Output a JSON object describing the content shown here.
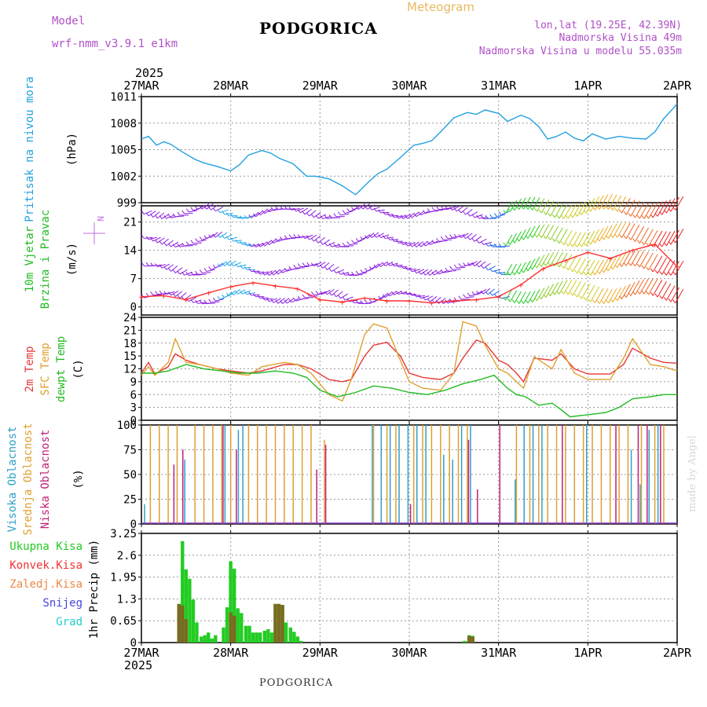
{
  "header": {
    "model_label": "Model",
    "model_name": "wrf-nmm_v3.9.1 e1km",
    "title": "PODGORICA",
    "meteogram_label": "Meteogram",
    "lonlat": "lon,lat (19.25E, 42.39N)",
    "elevation": "Nadmorska Visina 49m",
    "model_elevation": "Nadmorska Visina u modelu 55.035m",
    "year": "2025",
    "credit": "made by Angel"
  },
  "footer": {
    "station": "PODGORICA"
  },
  "colors": {
    "pressure": "#22a0e0",
    "temp2m": "#e83838",
    "sfc_temp": "#e0a030",
    "dewpoint": "#22bb22",
    "wind_barb": "#8a1ee0",
    "wind_speed": "#ff3030",
    "cloud_high": "#30a0c8",
    "cloud_mid": "#e0a030",
    "cloud_low": "#c0207a",
    "precip_total": "#22cc22",
    "precip_conv": "#ee3333",
    "precip_frozen": "#ee8844",
    "precip_snow": "#4444dd",
    "precip_hail": "#22cccc"
  },
  "x_axis": {
    "top_labels": [
      "27MAR",
      "28MAR",
      "29MAR",
      "30MAR",
      "31MAR",
      "1APR",
      "2APR"
    ],
    "bottom_labels": [
      "27MAR",
      "28MAR",
      "29MAR",
      "30MAR",
      "31MAR",
      "1APR",
      "2APR"
    ]
  },
  "chart_data": [
    {
      "type": "line",
      "panel": "pressure",
      "ylabel": "Pritisak na nivou mora",
      "unit": "(hPa)",
      "yticks": [
        999,
        1002,
        1005,
        1008,
        1011
      ],
      "ylim": [
        999,
        1011
      ],
      "series": [
        {
          "x": [
            0,
            0.08,
            0.17,
            0.25,
            0.33,
            0.45,
            0.6,
            0.7,
            0.85,
            1.0,
            1.1,
            1.2,
            1.35,
            1.45,
            1.55,
            1.7,
            1.85,
            1.95,
            2.1,
            2.25,
            2.4,
            2.55,
            2.65,
            2.75,
            2.9,
            3.05,
            3.15,
            3.25,
            3.35,
            3.5,
            3.65,
            3.75,
            3.85,
            4.0,
            4.1,
            4.25,
            4.35,
            4.45,
            4.55,
            4.65,
            4.75,
            4.85,
            4.95,
            5.05,
            5.2,
            5.35,
            5.5,
            5.65,
            5.75,
            5.85,
            5.95,
            6.0
          ],
          "values": [
            1006.2,
            1006.5,
            1005.5,
            1005.9,
            1005.6,
            1004.8,
            1003.9,
            1003.5,
            1003.1,
            1002.6,
            1003.3,
            1004.4,
            1004.9,
            1004.6,
            1004.0,
            1003.4,
            1002.0,
            1002.0,
            1001.7,
            1000.9,
            999.9,
            1001.4,
            1002.3,
            1002.8,
            1004.1,
            1005.5,
            1005.7,
            1006.0,
            1007.0,
            1008.6,
            1009.2,
            1009.0,
            1009.5,
            1009.1,
            1008.2,
            1008.9,
            1008.5,
            1007.6,
            1006.2,
            1006.5,
            1007.0,
            1006.3,
            1006.0,
            1006.8,
            1006.2,
            1006.5,
            1006.3,
            1006.2,
            1007.0,
            1008.5,
            1009.6,
            1010.2
          ]
        }
      ]
    },
    {
      "type": "line",
      "panel": "wind",
      "ylabel": "10m Vjetar Brzina i Pravac",
      "unit": "(m/s)",
      "compass": "N",
      "yticks": [
        0,
        7,
        14,
        21
      ],
      "ylim": [
        -2,
        25
      ],
      "series": [
        {
          "name": "wind speed",
          "x": [
            0,
            0.25,
            0.5,
            0.75,
            1.0,
            1.25,
            1.5,
            1.75,
            2.0,
            2.25,
            2.5,
            2.75,
            3.0,
            3.25,
            3.5,
            3.75,
            4.0,
            4.25,
            4.5,
            4.75,
            5.0,
            5.25,
            5.5,
            5.75,
            6.0
          ],
          "values": [
            2.5,
            2.8,
            1.8,
            3.5,
            5.0,
            6.0,
            5.2,
            4.5,
            1.8,
            1.2,
            2.2,
            1.5,
            1.5,
            1.0,
            1.5,
            1.8,
            2.5,
            5.5,
            9.5,
            11.5,
            13.5,
            12.0,
            14.0,
            15.5,
            10.0
          ]
        }
      ]
    },
    {
      "type": "line",
      "panel": "temperature",
      "ylabel": [
        "2m Temp",
        "SFC Temp",
        "dewpt Temp"
      ],
      "unit": "(C)",
      "yticks": [
        0,
        3,
        6,
        9,
        12,
        15,
        18,
        21,
        24
      ],
      "ylim": [
        0,
        24
      ],
      "series": [
        {
          "name": "2m Temp",
          "x": [
            0,
            0.08,
            0.15,
            0.3,
            0.38,
            0.5,
            0.65,
            0.85,
            1.0,
            1.2,
            1.35,
            1.6,
            1.75,
            1.9,
            2.1,
            2.25,
            2.35,
            2.5,
            2.6,
            2.75,
            2.9,
            3.0,
            3.15,
            3.35,
            3.5,
            3.6,
            3.75,
            3.85,
            4.0,
            4.1,
            4.2,
            4.28,
            4.4,
            4.6,
            4.7,
            4.85,
            5.0,
            5.1,
            5.25,
            5.4,
            5.5,
            5.7,
            5.85,
            6.0
          ],
          "values": [
            11,
            13.5,
            10.8,
            12.5,
            15.5,
            14.0,
            13.0,
            12.0,
            11.5,
            11.0,
            11.5,
            13.0,
            13.0,
            12.0,
            9.5,
            9.0,
            9.5,
            15.0,
            17.5,
            18.2,
            15.0,
            11.0,
            10.0,
            9.5,
            11.0,
            14.5,
            18.7,
            18.0,
            14.0,
            13.0,
            11.0,
            9.0,
            14.5,
            14.0,
            15.5,
            12.0,
            10.8,
            10.8,
            10.8,
            13.0,
            16.8,
            14.5,
            13.5,
            13.3
          ]
        },
        {
          "name": "SFC Temp",
          "x": [
            0,
            0.08,
            0.15,
            0.3,
            0.38,
            0.5,
            0.65,
            0.85,
            1.0,
            1.2,
            1.35,
            1.6,
            1.75,
            1.9,
            2.1,
            2.25,
            2.35,
            2.5,
            2.6,
            2.75,
            2.9,
            3.0,
            3.15,
            3.35,
            3.5,
            3.6,
            3.75,
            3.85,
            4.0,
            4.1,
            4.2,
            4.28,
            4.4,
            4.6,
            4.7,
            4.85,
            5.0,
            5.1,
            5.25,
            5.4,
            5.5,
            5.7,
            5.85,
            6.0
          ],
          "values": [
            10.5,
            12.5,
            10.5,
            13.5,
            19.0,
            13.5,
            13.0,
            12.0,
            11.0,
            10.5,
            12.5,
            13.5,
            13.0,
            11.0,
            6.0,
            4.5,
            9.5,
            20.0,
            22.5,
            21.5,
            14.0,
            9.0,
            7.5,
            7.0,
            11.0,
            23.0,
            22.0,
            17.5,
            12.0,
            11.0,
            9.0,
            7.5,
            14.8,
            12.0,
            16.5,
            11.0,
            9.5,
            9.5,
            9.5,
            14.5,
            19.0,
            13.0,
            12.5,
            11.5
          ]
        },
        {
          "name": "dewpt Temp",
          "x": [
            0,
            0.15,
            0.3,
            0.5,
            0.7,
            0.9,
            1.1,
            1.3,
            1.5,
            1.7,
            1.85,
            2.0,
            2.2,
            2.4,
            2.6,
            2.8,
            3.0,
            3.2,
            3.4,
            3.6,
            3.8,
            3.95,
            4.1,
            4.2,
            4.3,
            4.45,
            4.6,
            4.7,
            4.8,
            5.0,
            5.2,
            5.35,
            5.5,
            5.7,
            5.85,
            6.0
          ],
          "values": [
            11,
            11,
            11.5,
            13.0,
            12.0,
            11.5,
            11.0,
            11.0,
            11.5,
            11.0,
            10.0,
            7.0,
            5.5,
            6.5,
            8.0,
            7.5,
            6.5,
            6.0,
            7.0,
            8.5,
            9.5,
            10.5,
            7.5,
            6.0,
            5.5,
            3.5,
            4.0,
            2.5,
            0.8,
            1.3,
            1.8,
            3.0,
            5.0,
            5.5,
            6.0,
            6.0
          ]
        }
      ]
    },
    {
      "type": "bar",
      "panel": "clouds",
      "ylabel": [
        "Visoka Oblacnost",
        "Srednja Oblacnost",
        "Niska Oblacnost"
      ],
      "unit": "(%)",
      "yticks": [
        0,
        25,
        50,
        75,
        100
      ],
      "ylim": [
        0,
        100
      ],
      "series": [
        {
          "name": "Visoka Oblacnost",
          "x": [
            0.05,
            0.5,
            0.95,
            1.1,
            1.15,
            2.6,
            2.7,
            2.8,
            2.9,
            3.0,
            3.1,
            3.2,
            3.4,
            3.5,
            3.6,
            3.7,
            4.2,
            4.3,
            4.4,
            4.5,
            5.0,
            5.5,
            5.6,
            5.7,
            5.8
          ],
          "values": [
            20,
            65,
            100,
            95,
            100,
            100,
            100,
            100,
            100,
            100,
            100,
            100,
            70,
            65,
            100,
            100,
            45,
            100,
            100,
            100,
            100,
            75,
            40,
            95,
            100
          ]
        },
        {
          "name": "Srednja Oblacnost",
          "x": [
            0.1,
            0.2,
            0.3,
            0.4,
            0.6,
            0.7,
            0.8,
            0.9,
            1.0,
            1.2,
            1.3,
            1.4,
            1.5,
            1.6,
            1.7,
            1.8,
            1.9,
            2.05,
            2.6,
            2.75,
            2.85,
            3.05,
            3.15,
            3.25,
            3.35,
            3.45,
            3.55,
            3.65,
            4.2,
            4.35,
            4.45,
            4.55,
            4.65,
            4.75,
            4.85,
            4.95,
            5.05,
            5.15,
            5.25,
            5.35,
            5.45,
            5.6,
            5.75,
            5.85
          ],
          "values": [
            100,
            100,
            100,
            100,
            100,
            100,
            100,
            100,
            100,
            100,
            100,
            100,
            100,
            100,
            100,
            100,
            100,
            85,
            100,
            100,
            100,
            100,
            100,
            100,
            100,
            100,
            100,
            100,
            100,
            100,
            100,
            100,
            100,
            100,
            100,
            100,
            100,
            100,
            100,
            100,
            100,
            100,
            100,
            100
          ]
        },
        {
          "name": "Niska Oblacnost",
          "x": [
            0.35,
            0.45,
            0.9,
            1.05,
            1.95,
            2.05,
            3.0,
            3.65,
            3.75,
            4.0,
            4.7,
            5.3,
            5.55,
            5.65,
            5.8
          ],
          "values": [
            60,
            75,
            100,
            75,
            55,
            80,
            20,
            85,
            35,
            100,
            100,
            100,
            100,
            100,
            100
          ]
        }
      ]
    },
    {
      "type": "bar",
      "panel": "precipitation",
      "ylabel": "1hr Precip (mm)",
      "legend": [
        "Ukupna Kisa",
        "Konvek.Kisa",
        "Zaledj.Kisa",
        "Snijeg",
        "Grad"
      ],
      "yticks": [
        0,
        0.65,
        1.3,
        1.95,
        2.6,
        3.25
      ],
      "ylim": [
        0,
        3.25
      ],
      "series": [
        {
          "name": "Ukupna Kisa",
          "x": [
            0.42,
            0.46,
            0.5,
            0.54,
            0.58,
            0.62,
            0.67,
            0.71,
            0.75,
            0.79,
            0.83,
            0.92,
            0.96,
            1.0,
            1.04,
            1.08,
            1.12,
            1.17,
            1.21,
            1.25,
            1.29,
            1.33,
            1.38,
            1.42,
            1.46,
            1.5,
            1.54,
            1.58,
            1.62,
            1.67,
            1.71,
            1.75,
            1.79,
            3.62,
            3.67,
            3.71
          ],
          "values": [
            1.15,
            3.02,
            2.18,
            1.9,
            1.28,
            0.6,
            0.18,
            0.22,
            0.3,
            0.12,
            0.22,
            0.45,
            1.05,
            2.42,
            2.2,
            1.02,
            0.88,
            0.5,
            0.5,
            0.3,
            0.3,
            0.3,
            0.35,
            0.4,
            0.3,
            1.15,
            1.15,
            1.12,
            0.6,
            0.45,
            0.32,
            0.18,
            0.05,
            0.05,
            0.22,
            0.2
          ]
        },
        {
          "name": "Konvek.Kisa",
          "x": [
            0.42,
            0.46,
            0.5,
            1.0,
            1.04,
            1.5,
            1.54,
            1.58,
            3.67,
            3.71
          ],
          "values": [
            1.15,
            1.1,
            0.7,
            0.9,
            0.8,
            1.15,
            1.15,
            1.12,
            0.2,
            0.18
          ]
        }
      ]
    }
  ]
}
